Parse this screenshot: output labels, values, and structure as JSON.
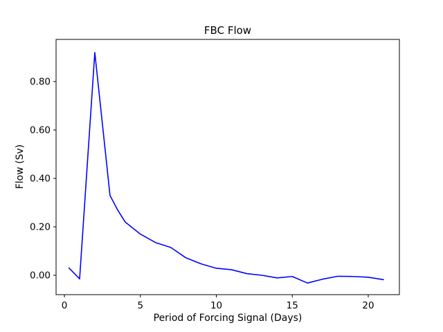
{
  "chart_data": {
    "type": "line",
    "title": "FBC Flow",
    "xlabel": "Period of Forcing Signal (Days)",
    "ylabel": "Flow (Sv)",
    "x": [
      0.3,
      1,
      2,
      3,
      3.5,
      4,
      5,
      6,
      7,
      8,
      9,
      10,
      11,
      12,
      13,
      14,
      15,
      16,
      17,
      18,
      19,
      20,
      21
    ],
    "y": [
      0.03,
      -0.015,
      0.92,
      0.33,
      0.27,
      0.22,
      0.17,
      0.135,
      0.115,
      0.072,
      0.047,
      0.029,
      0.023,
      0.007,
      0.0,
      -0.011,
      -0.005,
      -0.032,
      -0.016,
      -0.004,
      -0.005,
      -0.008,
      -0.018
    ],
    "xlim": [
      -0.55,
      22.05
    ],
    "ylim": [
      -0.08,
      0.974
    ],
    "xticks": [
      0,
      5,
      10,
      15,
      20
    ],
    "xtick_labels": [
      "0",
      "5",
      "10",
      "15",
      "20"
    ],
    "yticks": [
      0.0,
      0.2,
      0.4,
      0.6,
      0.8
    ],
    "ytick_labels": [
      "0.00",
      "0.20",
      "0.40",
      "0.60",
      "0.80"
    ],
    "grid": false,
    "legend": "none",
    "line_color": "#0000ff",
    "axis_color": "#000000",
    "background_color": "#ffffff"
  }
}
